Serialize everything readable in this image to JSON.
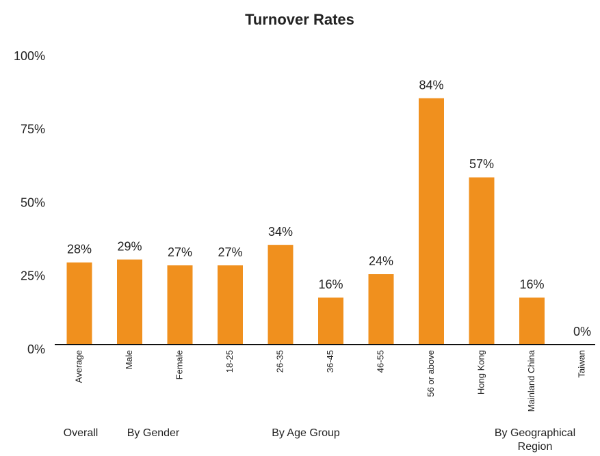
{
  "chart_data": {
    "type": "bar",
    "title": "Turnover Rates",
    "categories": [
      "Average",
      "Male",
      "Female",
      "18-25",
      "26-35",
      "36-45",
      "46-55",
      "56 or above",
      "Hong Kong",
      "Mainland China",
      "Taiwan"
    ],
    "values": [
      28,
      29,
      27,
      27,
      34,
      16,
      24,
      84,
      57,
      16,
      0
    ],
    "value_labels": [
      "28%",
      "29%",
      "27%",
      "27%",
      "34%",
      "16%",
      "24%",
      "84%",
      "57%",
      "16%",
      "0%"
    ],
    "color": "#f0901e",
    "ylim": [
      0,
      100
    ],
    "yticks": [
      {
        "value": 0,
        "label": "0%"
      },
      {
        "value": 25,
        "label": "25%"
      },
      {
        "value": 50,
        "label": "50%"
      },
      {
        "value": 75,
        "label": "75%"
      },
      {
        "value": 100,
        "label": "100%"
      }
    ],
    "grid": false,
    "group_labels": [
      "Overall",
      "By Gender",
      "By Age Group",
      "By Geographical Region"
    ]
  }
}
